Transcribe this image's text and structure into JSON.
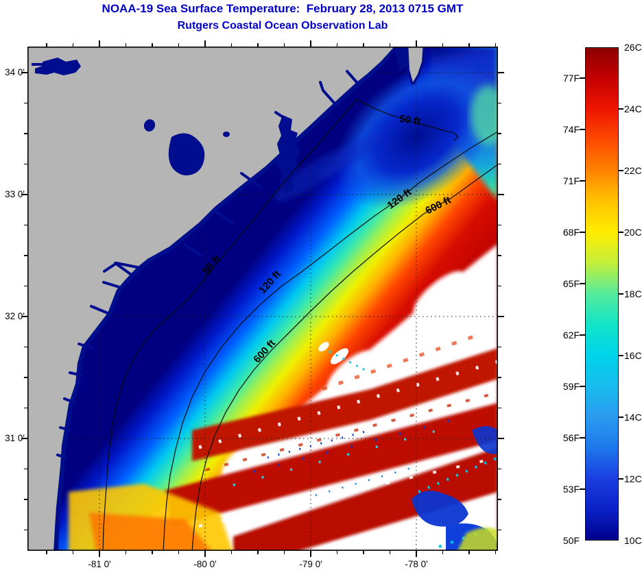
{
  "header": {
    "title": "NOAA-19 Sea Surface Temperature:  February 28, 2013 0715 GMT",
    "subtitle": "Rutgers Coastal Ocean Observation Lab"
  },
  "map": {
    "x_axis": {
      "ticks": [
        {
          "value": -81,
          "label": "-81 0'"
        },
        {
          "value": -80,
          "label": "-80 0'"
        },
        {
          "value": -79,
          "label": "-79 0'"
        },
        {
          "value": -78,
          "label": "-78 0'"
        }
      ]
    },
    "y_axis": {
      "ticks": [
        {
          "value": 34,
          "label": "34 0'"
        },
        {
          "value": 33,
          "label": "33 0'"
        },
        {
          "value": 32,
          "label": "32 0'"
        },
        {
          "value": 31,
          "label": "31 0'"
        }
      ]
    },
    "contour_labels": {
      "north": [
        "50 ft",
        "120 ft",
        "600 ft"
      ],
      "south": [
        "50 ft",
        "120 ft",
        "600 ft"
      ]
    }
  },
  "colorbar": {
    "min_c": 10,
    "max_c": 26,
    "celsius_labels": [
      {
        "value": 26,
        "label": "26C"
      },
      {
        "value": 24,
        "label": "24C"
      },
      {
        "value": 22,
        "label": "22C"
      },
      {
        "value": 20,
        "label": "20C"
      },
      {
        "value": 18,
        "label": "18C"
      },
      {
        "value": 16,
        "label": "16C"
      },
      {
        "value": 14,
        "label": "14C"
      },
      {
        "value": 12,
        "label": "12C"
      },
      {
        "value": 10,
        "label": "10C"
      }
    ],
    "fahrenheit_labels": [
      {
        "value": 77,
        "label": "77F"
      },
      {
        "value": 74,
        "label": "74F"
      },
      {
        "value": 71,
        "label": "71F"
      },
      {
        "value": 68,
        "label": "68F"
      },
      {
        "value": 65,
        "label": "65F"
      },
      {
        "value": 62,
        "label": "62F"
      },
      {
        "value": 59,
        "label": "59F"
      },
      {
        "value": 56,
        "label": "56F"
      },
      {
        "value": 53,
        "label": "53F"
      },
      {
        "value": 50,
        "label": "50F"
      }
    ],
    "scale_stops": [
      {
        "c": 10,
        "color": "#00008c"
      },
      {
        "c": 11,
        "color": "#0a22c8"
      },
      {
        "c": 12,
        "color": "#1b3fe0"
      },
      {
        "c": 13,
        "color": "#1e78ec"
      },
      {
        "c": 14,
        "color": "#2b9bee"
      },
      {
        "c": 15,
        "color": "#18bcee"
      },
      {
        "c": 16,
        "color": "#00d4ea"
      },
      {
        "c": 17,
        "color": "#12e4c8"
      },
      {
        "c": 18,
        "color": "#55eb9d"
      },
      {
        "c": 19,
        "color": "#c2ef3a"
      },
      {
        "c": 20,
        "color": "#ffec00"
      },
      {
        "c": 21,
        "color": "#ffc300"
      },
      {
        "c": 22,
        "color": "#ff8400"
      },
      {
        "c": 23,
        "color": "#fc4a00"
      },
      {
        "c": 24,
        "color": "#ef1600"
      },
      {
        "c": 25,
        "color": "#c40000"
      },
      {
        "c": 26,
        "color": "#8c0000"
      }
    ]
  },
  "chart_data": {
    "type": "heatmap",
    "title": "NOAA-19 Sea Surface Temperature:  February 28, 2013 0715 GMT",
    "subtitle": "Rutgers Coastal Ocean Observation Lab",
    "x_tick_labels": [
      "-81 0'",
      "-80 0'",
      "-79 0'",
      "-78 0'"
    ],
    "y_tick_labels": [
      "34 0'",
      "33 0'",
      "32 0'",
      "31 0'"
    ],
    "lon_range_deg": [
      -81.66,
      -77.21
    ],
    "lat_range_deg": [
      30.08,
      34.21
    ],
    "colorbar_range_c": [
      10,
      26
    ],
    "colorbar_range_f": [
      50,
      77
    ],
    "contour_levels_ft": [
      50,
      120,
      600
    ],
    "grid": "dotted at each whole degree"
  },
  "colors": {
    "title_text": "#0000c6",
    "land": "#b5b5b5",
    "coastal_cold_water": "#000e8c",
    "warm_core": "#a80000",
    "cloud_nodata": "#ffffff"
  }
}
